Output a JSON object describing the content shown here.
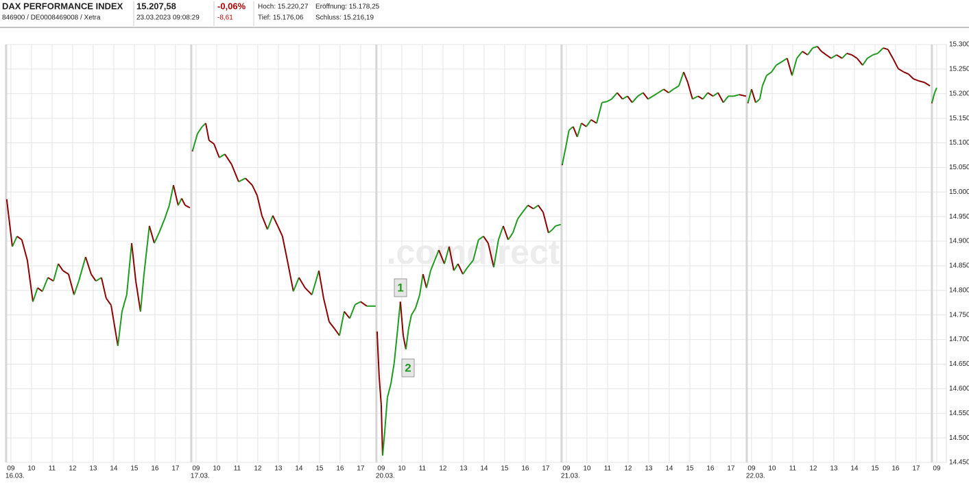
{
  "header": {
    "name": "DAX PERFORMANCE INDEX",
    "ids": "846900 / DE0008469008 / Xetra",
    "price": "15.207,58",
    "datetime": "23.03.2023 09:08:29",
    "change_pct": "-0,06%",
    "change_abs": "-8,61",
    "high": "Hoch: 15.220,27",
    "open": "Eröffnung: 15.178,25",
    "low": "Tief: 15.176,06",
    "close": "Schluss: 15.216,19"
  },
  "chart_data": {
    "type": "line",
    "watermark": ".comdirect",
    "annotations": [
      "1",
      "2"
    ],
    "xlim": [
      -0.23,
      45.47
    ],
    "xticks": [
      {
        "value": 0,
        "label": "09"
      },
      {
        "value": 1,
        "label": "10"
      },
      {
        "value": 2,
        "label": "11"
      },
      {
        "value": 3,
        "label": "12"
      },
      {
        "value": 4,
        "label": "13"
      },
      {
        "value": 5,
        "label": "14"
      },
      {
        "value": 6,
        "label": "15"
      },
      {
        "value": 7,
        "label": "16"
      },
      {
        "value": 8,
        "label": "17"
      },
      {
        "value": 9,
        "label": "09"
      },
      {
        "value": 10,
        "label": "10"
      },
      {
        "value": 11,
        "label": "11"
      },
      {
        "value": 12,
        "label": "12"
      },
      {
        "value": 13,
        "label": "13"
      },
      {
        "value": 14,
        "label": "14"
      },
      {
        "value": 15,
        "label": "15"
      },
      {
        "value": 16,
        "label": "16"
      },
      {
        "value": 17,
        "label": "17"
      },
      {
        "value": 18,
        "label": "09"
      },
      {
        "value": 19,
        "label": "10"
      },
      {
        "value": 20,
        "label": "11"
      },
      {
        "value": 21,
        "label": "12"
      },
      {
        "value": 22,
        "label": "13"
      },
      {
        "value": 23,
        "label": "14"
      },
      {
        "value": 24,
        "label": "15"
      },
      {
        "value": 25,
        "label": "16"
      },
      {
        "value": 26,
        "label": "17"
      },
      {
        "value": 27,
        "label": "09"
      },
      {
        "value": 28,
        "label": "10"
      },
      {
        "value": 29,
        "label": "11"
      },
      {
        "value": 30,
        "label": "12"
      },
      {
        "value": 31,
        "label": "13"
      },
      {
        "value": 32,
        "label": "14"
      },
      {
        "value": 33,
        "label": "15"
      },
      {
        "value": 34,
        "label": "16"
      },
      {
        "value": 35,
        "label": "17"
      },
      {
        "value": 36,
        "label": "09"
      },
      {
        "value": 37,
        "label": "10"
      },
      {
        "value": 38,
        "label": "11"
      },
      {
        "value": 39,
        "label": "12"
      },
      {
        "value": 40,
        "label": "13"
      },
      {
        "value": 41,
        "label": "14"
      },
      {
        "value": 42,
        "label": "15"
      },
      {
        "value": 43,
        "label": "16"
      },
      {
        "value": 44,
        "label": "17"
      },
      {
        "value": 45,
        "label": "09"
      }
    ],
    "day_labels": [
      {
        "value": 0,
        "label": "16.03."
      },
      {
        "value": 9,
        "label": "17.03."
      },
      {
        "value": 18,
        "label": "20.03."
      },
      {
        "value": 27,
        "label": "21.03."
      },
      {
        "value": 36,
        "label": "22.03."
      }
    ],
    "ylim": [
      14450,
      15300
    ],
    "yticks": [
      {
        "value": 14450,
        "label": "14.450"
      },
      {
        "value": 14500,
        "label": "14.500"
      },
      {
        "value": 14550,
        "label": "14.550"
      },
      {
        "value": 14600,
        "label": "14.600"
      },
      {
        "value": 14650,
        "label": "14.650"
      },
      {
        "value": 14700,
        "label": "14.700"
      },
      {
        "value": 14750,
        "label": "14.750"
      },
      {
        "value": 14800,
        "label": "14.800"
      },
      {
        "value": 14850,
        "label": "14.850"
      },
      {
        "value": 14900,
        "label": "14.900"
      },
      {
        "value": 14950,
        "label": "14.950"
      },
      {
        "value": 15000,
        "label": "15.000"
      },
      {
        "value": 15050,
        "label": "15.050"
      },
      {
        "value": 15100,
        "label": "15.100"
      },
      {
        "value": 15150,
        "label": "15.150"
      },
      {
        "value": 15200,
        "label": "15.200"
      },
      {
        "value": 15250,
        "label": "15.250"
      },
      {
        "value": 15300,
        "label": "15.300"
      }
    ],
    "grid": true,
    "up_color": "#1f9a1f",
    "down_color": "#8b0000",
    "series": [
      {
        "name": "DAX",
        "color": "#8b0000",
        "x": [
          -0.2,
          0.07,
          0.3,
          0.53,
          0.8,
          1.07,
          1.3,
          1.53,
          1.8,
          2.07,
          2.3,
          2.53,
          2.8,
          3.07,
          3.3,
          3.63,
          3.9,
          4.13,
          4.4,
          4.63,
          4.87,
          5.2,
          5.4,
          5.63,
          5.87,
          6.07,
          6.3,
          6.47,
          6.73,
          6.97,
          7.2,
          7.47,
          7.7,
          7.9,
          8.13,
          8.3,
          8.47,
          8.7,
          null,
          8.83,
          9.07,
          9.3,
          9.47,
          9.63,
          9.87,
          10.13,
          10.4,
          10.73,
          11.07,
          11.4,
          11.73,
          11.97,
          12.2,
          12.47,
          12.73,
          12.97,
          13.2,
          13.47,
          13.73,
          14.0,
          14.3,
          14.63,
          14.97,
          15.2,
          15.47,
          15.73,
          15.97,
          16.2,
          16.47,
          16.73,
          17.0,
          17.3,
          17.73,
          null,
          17.8,
          17.9,
          18.0,
          18.07,
          18.17,
          18.3,
          18.47,
          18.63,
          18.8,
          18.93,
          19.07,
          19.2,
          19.33,
          19.47,
          19.67,
          19.87,
          20.03,
          20.2,
          20.4,
          20.6,
          20.8,
          21.07,
          21.3,
          21.53,
          21.73,
          21.97,
          22.2,
          22.47,
          22.73,
          22.97,
          23.2,
          23.47,
          23.7,
          23.93,
          24.17,
          24.4,
          24.63,
          24.87,
          25.13,
          25.4,
          25.63,
          25.87,
          26.13,
          26.33,
          26.47,
          26.73,
          null,
          26.8,
          26.97,
          27.13,
          27.33,
          27.53,
          27.73,
          27.97,
          28.2,
          28.47,
          28.73,
          28.97,
          29.2,
          29.47,
          29.73,
          29.97,
          30.2,
          30.47,
          30.73,
          30.97,
          31.2,
          31.47,
          31.73,
          31.97,
          32.2,
          32.47,
          32.7,
          32.9,
          33.13,
          33.4,
          33.63,
          33.87,
          34.13,
          34.37,
          34.63,
          34.87,
          35.13,
          35.4,
          35.73,
          null,
          35.83,
          36.0,
          36.2,
          36.4,
          36.53,
          36.73,
          36.97,
          37.2,
          37.47,
          37.73,
          37.97,
          38.2,
          38.47,
          38.73,
          38.97,
          39.2,
          39.4,
          39.63,
          39.87,
          40.13,
          40.4,
          40.63,
          40.87,
          41.13,
          41.4,
          41.63,
          41.9,
          42.13,
          42.4,
          42.63,
          42.87,
          43.13,
          43.4,
          43.63,
          43.87,
          44.13,
          44.4,
          44.67,
          null,
          44.77,
          44.9,
          45.0
        ],
        "values": [
          14984,
          14889,
          14910,
          14903,
          14861,
          14777,
          14805,
          14798,
          14826,
          14819,
          14854,
          14840,
          14833,
          14791,
          14819,
          14868,
          14833,
          14819,
          14826,
          14784,
          14770,
          14687,
          14757,
          14791,
          14896,
          14819,
          14757,
          14833,
          14931,
          14896,
          14917,
          14945,
          14973,
          15014,
          14973,
          14987,
          14973,
          14968,
          null,
          15084,
          15119,
          15133,
          15140,
          15105,
          15098,
          15070,
          15077,
          15056,
          15021,
          15028,
          15014,
          14993,
          14952,
          14924,
          14952,
          14931,
          14910,
          14854,
          14798,
          14826,
          14805,
          14791,
          14840,
          14784,
          14736,
          14722,
          14708,
          14757,
          14743,
          14771,
          14777,
          14768,
          14768,
          null,
          14715,
          14624,
          14568,
          14464,
          14513,
          14582,
          14610,
          14652,
          14722,
          14777,
          14708,
          14680,
          14722,
          14750,
          14764,
          14791,
          14833,
          14805,
          14840,
          14861,
          14882,
          14854,
          14889,
          14840,
          14854,
          14833,
          14847,
          14861,
          14903,
          14910,
          14896,
          14847,
          14903,
          14931,
          14903,
          14917,
          14945,
          14959,
          14973,
          14966,
          14973,
          14959,
          14917,
          14924,
          14931,
          14934,
          null,
          15056,
          15091,
          15126,
          15133,
          15112,
          15140,
          15133,
          15147,
          15140,
          15182,
          15184,
          15189,
          15202,
          15189,
          15195,
          15182,
          15195,
          15202,
          15189,
          15195,
          15202,
          15209,
          15202,
          15209,
          15216,
          15244,
          15223,
          15189,
          15195,
          15189,
          15202,
          15195,
          15202,
          15182,
          15195,
          15195,
          15198,
          15195,
          null,
          15182,
          15209,
          15182,
          15189,
          15216,
          15237,
          15244,
          15258,
          15265,
          15272,
          15237,
          15272,
          15286,
          15279,
          15293,
          15296,
          15286,
          15279,
          15272,
          15279,
          15272,
          15282,
          15279,
          15272,
          15258,
          15272,
          15279,
          15282,
          15293,
          15290,
          15272,
          15251,
          15244,
          15240,
          15230,
          15226,
          15223,
          15216,
          null,
          15182,
          15202,
          15212
        ]
      }
    ]
  }
}
